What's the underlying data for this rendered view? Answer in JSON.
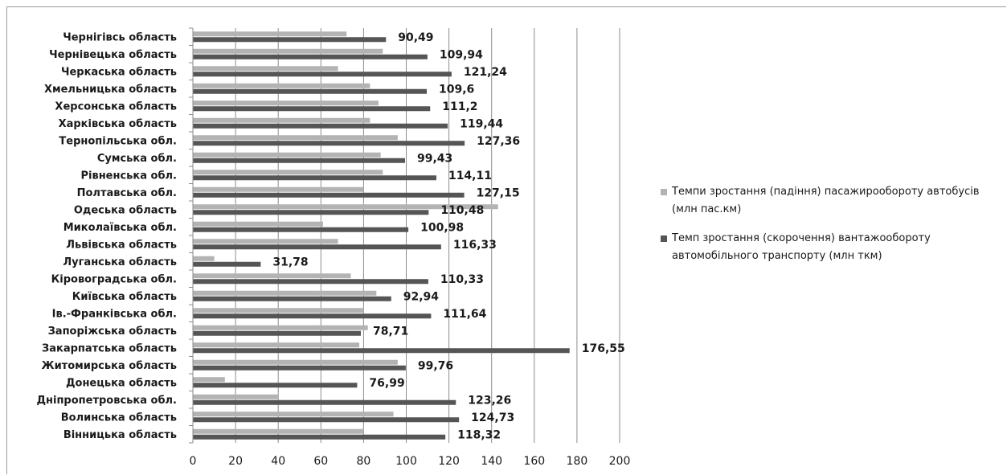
{
  "chart_data": {
    "type": "bar",
    "orientation": "horizontal",
    "categories": [
      "Вінницька область",
      "Волинська область",
      "Дніпропетровська обл.",
      "Донецька область",
      "Житомирська  область",
      "Закарпатська область",
      "Запоріжська область",
      "Ів.-Франківська обл.",
      "Київська область",
      "Кіровоградська обл.",
      "Луганська область",
      "Львівська область",
      "Миколаївська обл.",
      "Одеська область",
      "Полтавська обл.",
      "Рівненська обл.",
      "Сумська обл.",
      "Тернопільська обл.",
      "Харківська область",
      "Херсонська область",
      "Хмельницька область",
      "Черкаська область",
      "Чернівецька область",
      "Чернігівсь область"
    ],
    "series": [
      {
        "name": "Темпи зростання (падіння) пасажирообороту автобусів (млн пас.км)",
        "color": "#b3b3b3",
        "values": [
          80,
          94,
          40,
          15,
          96,
          78,
          82,
          80,
          86,
          74,
          10,
          68,
          61,
          143,
          80,
          89,
          88,
          96,
          83,
          87,
          83,
          68,
          89,
          72
        ]
      },
      {
        "name": "Темп зростання (скорочення) вантажообороту автомобільного транспорту (млн ткм)",
        "color": "#555555",
        "values": [
          118.32,
          124.73,
          123.26,
          76.99,
          99.76,
          176.55,
          78.71,
          111.64,
          92.94,
          110.33,
          31.78,
          116.33,
          100.98,
          110.48,
          127.15,
          114.11,
          99.43,
          127.36,
          119.44,
          111.2,
          109.6,
          121.24,
          109.94,
          90.49
        ]
      }
    ],
    "data_labels": [
      "118,32",
      "124,73",
      "123,26",
      "76,99",
      "99,76",
      "176,55",
      "78,71",
      "111,64",
      "92,94",
      "110,33",
      "31,78",
      "116,33",
      "100,98",
      "110,48",
      "127,15",
      "114,11",
      "99,43",
      "127,36",
      "119,44",
      "111,2",
      "109,6",
      "121,24",
      "109,94",
      "90,49"
    ],
    "xlim": [
      0,
      200
    ],
    "xticks": [
      0,
      20,
      40,
      60,
      80,
      100,
      120,
      140,
      160,
      180,
      200
    ],
    "grid": "vertical",
    "legend_position": "right"
  }
}
